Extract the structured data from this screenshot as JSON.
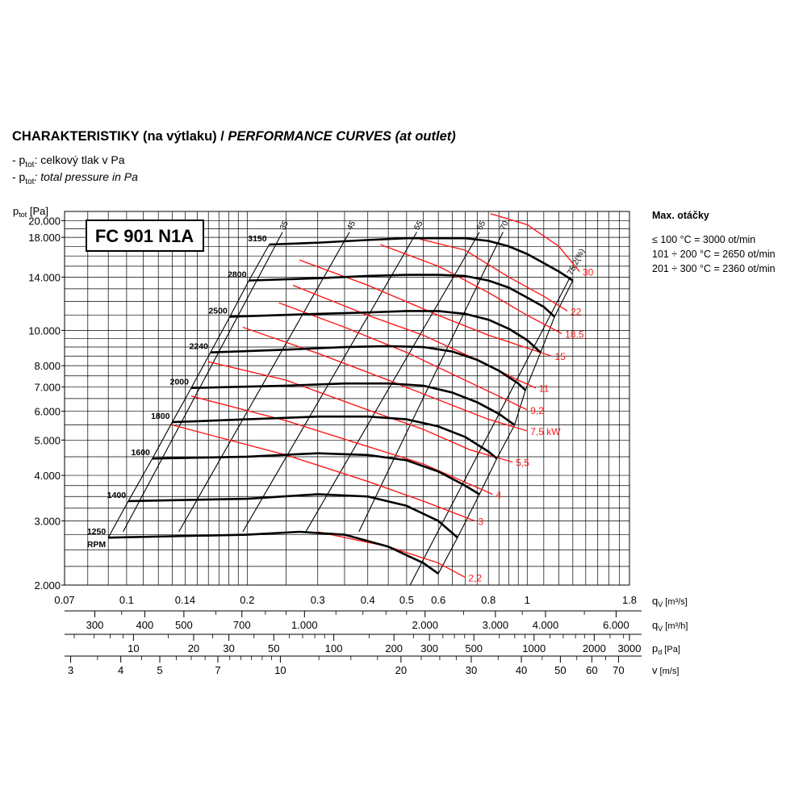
{
  "title": {
    "main": "CHARAKTERISTIKY (na výtlaku) / ",
    "italic": "PERFORMANCE CURVES (at outlet)"
  },
  "legend": {
    "line1_prefix": "- p",
    "line1_sub": "tot",
    "line1_text": ": celkový tlak v Pa",
    "line2_prefix": "- p",
    "line2_sub": "tot",
    "line2_text": ": total pressure in Pa"
  },
  "max_speed": {
    "heading": "Max. otáčky",
    "lines": [
      "≤ 100 °C = 3000 ot/min",
      "101 ÷ 200 °C = 2650 ot/min",
      "201 ÷ 300 °C = 2360 ot/min"
    ]
  },
  "colors": {
    "fan_curve": "#000000",
    "power_curve": "#ff1a1a",
    "grid": "#000000"
  },
  "chart_data": {
    "type": "line",
    "model_label": "FC 901 N1A",
    "y_axis": {
      "label": "p",
      "label_sub": "tot",
      "label_unit": " [Pa]",
      "scale": "log",
      "range": [
        2000,
        20000
      ],
      "tick_labels": [
        "20.000",
        "18.000",
        "14.000",
        "10.000",
        "8.000",
        "7.000",
        "6.000",
        "5.000",
        "4.000",
        "3.000",
        "2.000"
      ],
      "tick_values": [
        20000,
        18000,
        14000,
        10000,
        8000,
        7000,
        6000,
        5000,
        4000,
        3000,
        2000
      ]
    },
    "x_axis": {
      "label": "q",
      "label_sub": "V",
      "label_unit": " [m³/s]",
      "scale": "log",
      "range": [
        0.07,
        1.8
      ],
      "tick_labels": [
        "0.07",
        "0.1",
        "0.14",
        "0.2",
        "0.3",
        "0.4",
        "0.5",
        "0.6",
        "0.8",
        "1",
        "1.8"
      ],
      "tick_values": [
        0.07,
        0.1,
        0.14,
        0.2,
        0.3,
        0.4,
        0.5,
        0.6,
        0.8,
        1,
        1.8
      ]
    },
    "secondary_axes": [
      {
        "label": "q",
        "label_sub": "V",
        "label_unit": " [m³/h]",
        "ticks": [
          {
            "t": "300",
            "v": 0.0833
          },
          {
            "t": "400",
            "v": 0.111
          },
          {
            "t": "500",
            "v": 0.139
          },
          {
            "t": "700",
            "v": 0.194
          },
          {
            "t": "1.000",
            "v": 0.278
          },
          {
            "t": "2.000",
            "v": 0.556
          },
          {
            "t": "3.000",
            "v": 0.833
          },
          {
            "t": "4.000",
            "v": 1.111
          },
          {
            "t": "6.000",
            "v": 1.667
          }
        ],
        "minor": [
          0.0972,
          0.167,
          0.222,
          0.25,
          0.333,
          0.389,
          0.444,
          0.5,
          0.694,
          0.972,
          1.389
        ]
      },
      {
        "label": "p",
        "label_sub": "d",
        "label_unit": " [Pa]",
        "ticks": [
          {
            "t": "10",
            "v": 0.104
          },
          {
            "t": "20",
            "v": 0.147
          },
          {
            "t": "30",
            "v": 0.18
          },
          {
            "t": "50",
            "v": 0.233
          },
          {
            "t": "100",
            "v": 0.329
          },
          {
            "t": "200",
            "v": 0.465
          },
          {
            "t": "300",
            "v": 0.57
          },
          {
            "t": "500",
            "v": 0.736
          },
          {
            "t": "1000",
            "v": 1.04
          },
          {
            "t": "2000",
            "v": 1.47
          },
          {
            "t": "3000",
            "v": 1.8
          }
        ],
        "minor": [
          0.074,
          0.083,
          0.091,
          0.098,
          0.127,
          0.164,
          0.208,
          0.255,
          0.275,
          0.295,
          0.312,
          0.403,
          0.52,
          0.616,
          0.658,
          0.698,
          0.852,
          0.931,
          0.987,
          1.14,
          1.23,
          1.32,
          1.39,
          1.61,
          1.74
        ]
      },
      {
        "label": "v",
        "label_sub": "",
        "label_unit": " [m/s]",
        "ticks": [
          {
            "t": "3",
            "v": 0.0725
          },
          {
            "t": "4",
            "v": 0.0967
          },
          {
            "t": "5",
            "v": 0.121
          },
          {
            "t": "7",
            "v": 0.169
          },
          {
            "t": "10",
            "v": 0.242
          },
          {
            "t": "20",
            "v": 0.484
          },
          {
            "t": "30",
            "v": 0.725
          },
          {
            "t": "40",
            "v": 0.967
          },
          {
            "t": "50",
            "v": 1.21
          },
          {
            "t": "60",
            "v": 1.45
          },
          {
            "t": "70",
            "v": 1.69
          }
        ],
        "minor": [
          0.0846,
          0.109,
          0.133,
          0.145,
          0.157,
          0.181,
          0.193,
          0.205,
          0.218,
          0.23,
          0.302,
          0.363,
          0.423,
          0.544,
          0.605,
          0.665,
          0.846,
          1.09,
          1.33,
          1.57
        ]
      }
    ],
    "grid": true,
    "grid_y_values": [
      2000,
      2250,
      2500,
      2750,
      3000,
      3250,
      3500,
      3750,
      4000,
      4500,
      5000,
      5500,
      6000,
      6500,
      7000,
      7500,
      8000,
      8500,
      9000,
      9500,
      10000,
      11000,
      12000,
      13000,
      14000,
      15000,
      16000,
      17000,
      18000,
      19000,
      20000
    ],
    "grid_x_values": [
      0.07,
      0.08,
      0.09,
      0.1,
      0.11,
      0.12,
      0.13,
      0.14,
      0.15,
      0.16,
      0.17,
      0.18,
      0.19,
      0.2,
      0.25,
      0.3,
      0.35,
      0.4,
      0.45,
      0.5,
      0.55,
      0.6,
      0.65,
      0.7,
      0.75,
      0.8,
      0.85,
      0.9,
      0.95,
      1.0,
      1.1,
      1.2,
      1.3,
      1.4,
      1.5,
      1.6,
      1.7,
      1.8
    ],
    "rpm_unit": "RPM",
    "fan_curves": [
      {
        "rpm": "3150",
        "points": [
          [
            0.227,
            17200
          ],
          [
            0.3,
            17400
          ],
          [
            0.4,
            17700
          ],
          [
            0.5,
            17900
          ],
          [
            0.6,
            17900
          ],
          [
            0.7,
            17900
          ],
          [
            0.8,
            17600
          ],
          [
            0.9,
            17000
          ],
          [
            1.0,
            16200
          ],
          [
            1.1,
            15300
          ],
          [
            1.2,
            14500
          ],
          [
            1.3,
            13700
          ]
        ]
      },
      {
        "rpm": "2800",
        "points": [
          [
            0.202,
            13700
          ],
          [
            0.3,
            13900
          ],
          [
            0.4,
            14100
          ],
          [
            0.5,
            14200
          ],
          [
            0.6,
            14200
          ],
          [
            0.7,
            14100
          ],
          [
            0.8,
            13700
          ],
          [
            0.9,
            13100
          ],
          [
            1.0,
            12300
          ],
          [
            1.1,
            11600
          ],
          [
            1.17,
            10900
          ]
        ]
      },
      {
        "rpm": "2500",
        "points": [
          [
            0.181,
            10900
          ],
          [
            0.3,
            11100
          ],
          [
            0.4,
            11200
          ],
          [
            0.5,
            11300
          ],
          [
            0.6,
            11300
          ],
          [
            0.7,
            11100
          ],
          [
            0.8,
            10700
          ],
          [
            0.9,
            10100
          ],
          [
            1.0,
            9400
          ],
          [
            1.08,
            8700
          ]
        ]
      },
      {
        "rpm": "2240",
        "points": [
          [
            0.162,
            8700
          ],
          [
            0.25,
            8850
          ],
          [
            0.35,
            9000
          ],
          [
            0.45,
            9050
          ],
          [
            0.55,
            9000
          ],
          [
            0.65,
            8750
          ],
          [
            0.75,
            8300
          ],
          [
            0.85,
            7750
          ],
          [
            0.95,
            7150
          ],
          [
            0.99,
            6850
          ]
        ]
      },
      {
        "rpm": "2000",
        "points": [
          [
            0.145,
            6950
          ],
          [
            0.25,
            7050
          ],
          [
            0.35,
            7150
          ],
          [
            0.45,
            7150
          ],
          [
            0.55,
            7050
          ],
          [
            0.65,
            6750
          ],
          [
            0.75,
            6350
          ],
          [
            0.85,
            5900
          ],
          [
            0.93,
            5500
          ]
        ]
      },
      {
        "rpm": "1800",
        "points": [
          [
            0.13,
            5600
          ],
          [
            0.2,
            5700
          ],
          [
            0.3,
            5800
          ],
          [
            0.4,
            5800
          ],
          [
            0.5,
            5700
          ],
          [
            0.6,
            5450
          ],
          [
            0.7,
            5100
          ],
          [
            0.8,
            4650
          ],
          [
            0.84,
            4450
          ]
        ]
      },
      {
        "rpm": "1600",
        "points": [
          [
            0.116,
            4450
          ],
          [
            0.2,
            4500
          ],
          [
            0.3,
            4600
          ],
          [
            0.4,
            4550
          ],
          [
            0.5,
            4400
          ],
          [
            0.6,
            4100
          ],
          [
            0.7,
            3750
          ],
          [
            0.76,
            3550
          ]
        ]
      },
      {
        "rpm": "1400",
        "points": [
          [
            0.101,
            3400
          ],
          [
            0.2,
            3450
          ],
          [
            0.3,
            3550
          ],
          [
            0.4,
            3500
          ],
          [
            0.5,
            3300
          ],
          [
            0.6,
            3000
          ],
          [
            0.67,
            2700
          ]
        ]
      },
      {
        "rpm": "1250",
        "points": [
          [
            0.09,
            2700
          ],
          [
            0.2,
            2750
          ],
          [
            0.27,
            2800
          ],
          [
            0.35,
            2750
          ],
          [
            0.45,
            2550
          ],
          [
            0.55,
            2300
          ],
          [
            0.6,
            2150
          ]
        ]
      }
    ],
    "efficiency_lines": [
      {
        "label": "35",
        "from": [
          0.098,
          2800
        ],
        "to": [
          0.245,
          18600
        ]
      },
      {
        "label": "45",
        "from": [
          0.135,
          2800
        ],
        "to": [
          0.36,
          18600
        ]
      },
      {
        "label": "55",
        "from": [
          0.195,
          2800
        ],
        "to": [
          0.53,
          18600
        ]
      },
      {
        "label": "65",
        "from": [
          0.28,
          2800
        ],
        "to": [
          0.76,
          18600
        ]
      },
      {
        "label": "70",
        "from": [
          0.38,
          2800
        ],
        "to": [
          0.87,
          18600
        ]
      },
      {
        "label": "75,2(%)",
        "from": [
          0.51,
          2000
        ],
        "to": [
          1.28,
          14000
        ]
      }
    ],
    "power_lines": [
      {
        "label": "2,2",
        "points": [
          [
            0.3,
            2800
          ],
          [
            0.45,
            2550
          ],
          [
            0.6,
            2300
          ],
          [
            0.7,
            2100
          ]
        ]
      },
      {
        "label": "3",
        "points": [
          [
            0.13,
            5500
          ],
          [
            0.25,
            4550
          ],
          [
            0.4,
            3850
          ],
          [
            0.55,
            3400
          ],
          [
            0.74,
            3000
          ]
        ]
      },
      {
        "label": "4",
        "points": [
          [
            0.145,
            6600
          ],
          [
            0.25,
            5650
          ],
          [
            0.4,
            4800
          ],
          [
            0.55,
            4300
          ],
          [
            0.82,
            3550
          ]
        ]
      },
      {
        "label": "5,5",
        "points": [
          [
            0.16,
            8200
          ],
          [
            0.25,
            7300
          ],
          [
            0.4,
            6050
          ],
          [
            0.55,
            5350
          ],
          [
            0.72,
            4700
          ],
          [
            0.92,
            4350
          ]
        ]
      },
      {
        "label": "7,5 kW",
        "points": [
          [
            0.195,
            10200
          ],
          [
            0.3,
            8650
          ],
          [
            0.45,
            7300
          ],
          [
            0.6,
            6450
          ],
          [
            0.8,
            5700
          ],
          [
            1.0,
            5300
          ]
        ]
      },
      {
        "label": "9,2",
        "points": [
          [
            0.24,
            11900
          ],
          [
            0.35,
            10200
          ],
          [
            0.5,
            8700
          ],
          [
            0.7,
            7300
          ],
          [
            0.9,
            6400
          ],
          [
            1.0,
            6050
          ]
        ]
      },
      {
        "label": "11",
        "points": [
          [
            0.26,
            13300
          ],
          [
            0.4,
            11000
          ],
          [
            0.55,
            9700
          ],
          [
            0.75,
            8300
          ],
          [
            0.95,
            7300
          ],
          [
            1.05,
            6950
          ]
        ]
      },
      {
        "label": "15",
        "points": [
          [
            0.27,
            15600
          ],
          [
            0.4,
            13300
          ],
          [
            0.6,
            11000
          ],
          [
            0.8,
            9700
          ],
          [
            1.15,
            8500
          ]
        ]
      },
      {
        "label": "18,5",
        "points": [
          [
            0.43,
            17200
          ],
          [
            0.6,
            15000
          ],
          [
            0.8,
            12700
          ],
          [
            1.0,
            11000
          ],
          [
            1.22,
            9800
          ]
        ]
      },
      {
        "label": "22",
        "points": [
          [
            0.54,
            17800
          ],
          [
            0.7,
            16600
          ],
          [
            0.9,
            14000
          ],
          [
            1.1,
            12400
          ],
          [
            1.26,
            11300
          ]
        ]
      },
      {
        "label": "30",
        "points": [
          [
            0.81,
            20900
          ],
          [
            1.0,
            19500
          ],
          [
            1.2,
            17000
          ],
          [
            1.35,
            14500
          ]
        ]
      }
    ]
  }
}
